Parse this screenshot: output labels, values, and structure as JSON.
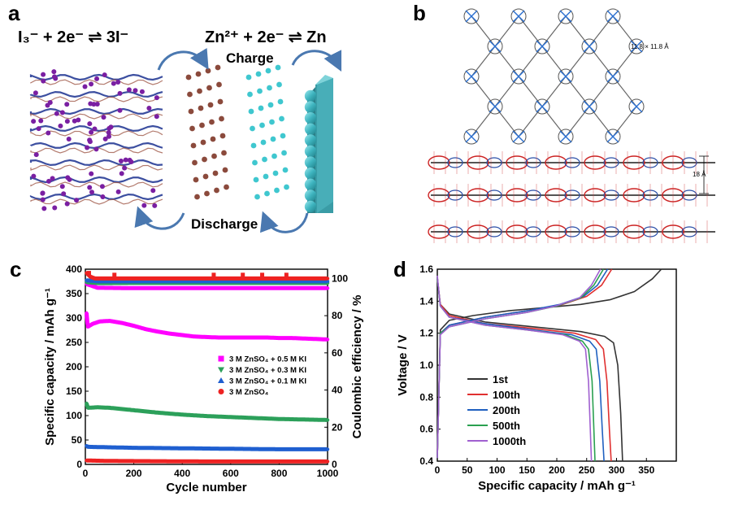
{
  "panels": {
    "a": {
      "label": "a",
      "eq_left": "I₃⁻ + 2e⁻ ⇌ 3I⁻",
      "eq_right": "Zn²⁺ + 2e⁻ ⇌ Zn",
      "charge": "Charge",
      "discharge": "Discharge",
      "colors": {
        "iodine": "#7a1fa2",
        "ion_brown": "#8b4a3c",
        "ion_cyan": "#3fc7cf",
        "zn_plate": "#3a9ca6"
      }
    },
    "b": {
      "label": "b",
      "pore": "11.8 × 11.8 Å",
      "spacing": "18 Å"
    }
  },
  "chart_data": [
    {
      "panel": "c",
      "type": "scatter",
      "xlabel": "Cycle number",
      "ylabel": "Specific capacity / mAh g⁻¹",
      "y2label": "Coulombic efficiency / %",
      "xlim": [
        0,
        1000
      ],
      "ylim": [
        0,
        400
      ],
      "y2lim": [
        0,
        105
      ],
      "xticks": [
        0,
        200,
        400,
        600,
        800,
        1000
      ],
      "yticks": [
        0,
        50,
        100,
        150,
        200,
        250,
        300,
        350,
        400
      ],
      "y2ticks": [
        0,
        20,
        40,
        60,
        80,
        100
      ],
      "legend_position": "center-right",
      "series": [
        {
          "name": "3 M ZnSO₄ + 0.5 M KI",
          "color": "#ff00ff",
          "marker": "square",
          "capacity": [
            [
              5,
              310
            ],
            [
              10,
              282
            ],
            [
              30,
              288
            ],
            [
              60,
              293
            ],
            [
              100,
              294
            ],
            [
              150,
              290
            ],
            [
              200,
              284
            ],
            [
              250,
              277
            ],
            [
              300,
              272
            ],
            [
              350,
              268
            ],
            [
              400,
              265
            ],
            [
              450,
              262
            ],
            [
              500,
              261
            ],
            [
              550,
              260
            ],
            [
              600,
              260
            ],
            [
              650,
              260
            ],
            [
              700,
              260
            ],
            [
              750,
              260
            ],
            [
              800,
              259
            ],
            [
              850,
              259
            ],
            [
              900,
              258
            ],
            [
              950,
              257
            ],
            [
              1000,
              256
            ]
          ],
          "efficiency": [
            [
              5,
              97
            ],
            [
              50,
              95
            ],
            [
              200,
              94.8
            ],
            [
              500,
              94.8
            ],
            [
              800,
              94.8
            ],
            [
              1000,
              94.8
            ]
          ]
        },
        {
          "name": "3 M ZnSO₄ + 0.3 M KI",
          "color": "#2ca05a",
          "marker": "triangle-down",
          "capacity": [
            [
              5,
              125
            ],
            [
              10,
              116
            ],
            [
              50,
              117
            ],
            [
              100,
              116
            ],
            [
              200,
              111
            ],
            [
              300,
              106
            ],
            [
              400,
              102
            ],
            [
              500,
              99
            ],
            [
              600,
              97
            ],
            [
              700,
              95
            ],
            [
              800,
              93
            ],
            [
              900,
              92
            ],
            [
              1000,
              91
            ]
          ],
          "efficiency": [
            [
              5,
              98
            ],
            [
              50,
              97.5
            ],
            [
              200,
              97.6
            ],
            [
              500,
              97.6
            ],
            [
              800,
              97.6
            ],
            [
              1000,
              97.6
            ]
          ]
        },
        {
          "name": "3 M ZnSO₄ + 0.1 M KI",
          "color": "#1f5fd0",
          "marker": "triangle-up",
          "capacity": [
            [
              5,
              38
            ],
            [
              10,
              36
            ],
            [
              100,
              35
            ],
            [
              200,
              34
            ],
            [
              400,
              33
            ],
            [
              600,
              32
            ],
            [
              800,
              31
            ],
            [
              1000,
              31
            ]
          ],
          "efficiency": [
            [
              5,
              99
            ],
            [
              50,
              98.5
            ],
            [
              500,
              98.5
            ],
            [
              1000,
              98.5
            ]
          ]
        },
        {
          "name": "3 M ZnSO₄",
          "color": "#ee2222",
          "marker": "circle",
          "capacity": [
            [
              5,
              8
            ],
            [
              100,
              7
            ],
            [
              500,
              6
            ],
            [
              1000,
              6
            ]
          ],
          "efficiency": [
            [
              5,
              103
            ],
            [
              20,
              101
            ],
            [
              40,
              100
            ],
            [
              200,
              100
            ],
            [
              500,
              100
            ],
            [
              800,
              100
            ],
            [
              1000,
              100
            ]
          ],
          "efficiency_spikes": [
            [
              15,
              103
            ],
            [
              120,
              102
            ],
            [
              530,
              102
            ],
            [
              650,
              102
            ],
            [
              730,
              102
            ],
            [
              830,
              102
            ]
          ]
        }
      ]
    },
    {
      "panel": "d",
      "type": "line",
      "xlabel": "Specific capacity / mAh g⁻¹",
      "ylabel": "Voltage / V",
      "xlim": [
        0,
        400
      ],
      "ylim": [
        0.4,
        1.6
      ],
      "xticks": [
        0,
        50,
        100,
        150,
        200,
        250,
        300,
        350
      ],
      "yticks": [
        0.4,
        0.6,
        0.8,
        1.0,
        1.2,
        1.4,
        1.6
      ],
      "legend_position": "bottom-left",
      "series": [
        {
          "name": "1st",
          "color": "#333333",
          "charge": [
            [
              0,
              0.42
            ],
            [
              5,
              1.22
            ],
            [
              20,
              1.28
            ],
            [
              60,
              1.31
            ],
            [
              120,
              1.34
            ],
            [
              180,
              1.36
            ],
            [
              240,
              1.38
            ],
            [
              290,
              1.41
            ],
            [
              330,
              1.46
            ],
            [
              360,
              1.54
            ],
            [
              375,
              1.6
            ]
          ],
          "discharge": [
            [
              0,
              1.54
            ],
            [
              5,
              1.38
            ],
            [
              20,
              1.32
            ],
            [
              80,
              1.27
            ],
            [
              160,
              1.24
            ],
            [
              240,
              1.21
            ],
            [
              280,
              1.18
            ],
            [
              295,
              1.14
            ],
            [
              302,
              1.0
            ],
            [
              307,
              0.7
            ],
            [
              310,
              0.4
            ]
          ]
        },
        {
          "name": "100th",
          "color": "#e03030",
          "charge": [
            [
              0,
              0.42
            ],
            [
              5,
              1.2
            ],
            [
              20,
              1.25
            ],
            [
              80,
              1.3
            ],
            [
              150,
              1.34
            ],
            [
              210,
              1.38
            ],
            [
              250,
              1.43
            ],
            [
              275,
              1.5
            ],
            [
              292,
              1.6
            ]
          ],
          "discharge": [
            [
              0,
              1.55
            ],
            [
              5,
              1.38
            ],
            [
              20,
              1.31
            ],
            [
              80,
              1.26
            ],
            [
              160,
              1.23
            ],
            [
              230,
              1.2
            ],
            [
              265,
              1.16
            ],
            [
              278,
              1.1
            ],
            [
              284,
              0.9
            ],
            [
              288,
              0.6
            ],
            [
              291,
              0.4
            ]
          ]
        },
        {
          "name": "200th",
          "color": "#1f60c0",
          "charge": [
            [
              0,
              0.42
            ],
            [
              5,
              1.2
            ],
            [
              20,
              1.25
            ],
            [
              80,
              1.3
            ],
            [
              150,
              1.34
            ],
            [
              205,
              1.38
            ],
            [
              245,
              1.43
            ],
            [
              268,
              1.5
            ],
            [
              285,
              1.6
            ]
          ],
          "discharge": [
            [
              0,
              1.55
            ],
            [
              5,
              1.37
            ],
            [
              20,
              1.3
            ],
            [
              80,
              1.26
            ],
            [
              160,
              1.22
            ],
            [
              225,
              1.19
            ],
            [
              255,
              1.15
            ],
            [
              266,
              1.1
            ],
            [
              272,
              0.9
            ],
            [
              276,
              0.6
            ],
            [
              279,
              0.4
            ]
          ]
        },
        {
          "name": "500th",
          "color": "#2aa050",
          "charge": [
            [
              0,
              0.42
            ],
            [
              5,
              1.2
            ],
            [
              20,
              1.24
            ],
            [
              80,
              1.29
            ],
            [
              150,
              1.33
            ],
            [
              200,
              1.37
            ],
            [
              240,
              1.42
            ],
            [
              262,
              1.5
            ],
            [
              278,
              1.6
            ]
          ],
          "discharge": [
            [
              0,
              1.55
            ],
            [
              5,
              1.37
            ],
            [
              20,
              1.3
            ],
            [
              80,
              1.25
            ],
            [
              150,
              1.22
            ],
            [
              215,
              1.19
            ],
            [
              243,
              1.15
            ],
            [
              253,
              1.1
            ],
            [
              259,
              0.9
            ],
            [
              262,
              0.6
            ],
            [
              264,
              0.4
            ]
          ]
        },
        {
          "name": "1000th",
          "color": "#a060d0",
          "charge": [
            [
              0,
              0.42
            ],
            [
              5,
              1.19
            ],
            [
              20,
              1.24
            ],
            [
              80,
              1.29
            ],
            [
              150,
              1.33
            ],
            [
              198,
              1.37
            ],
            [
              238,
              1.42
            ],
            [
              258,
              1.5
            ],
            [
              273,
              1.6
            ]
          ],
          "discharge": [
            [
              0,
              1.56
            ],
            [
              5,
              1.37
            ],
            [
              20,
              1.3
            ],
            [
              80,
              1.25
            ],
            [
              150,
              1.22
            ],
            [
              210,
              1.19
            ],
            [
              238,
              1.15
            ],
            [
              248,
              1.1
            ],
            [
              253,
              0.9
            ],
            [
              256,
              0.6
            ],
            [
              258,
              0.4
            ]
          ]
        }
      ]
    }
  ]
}
